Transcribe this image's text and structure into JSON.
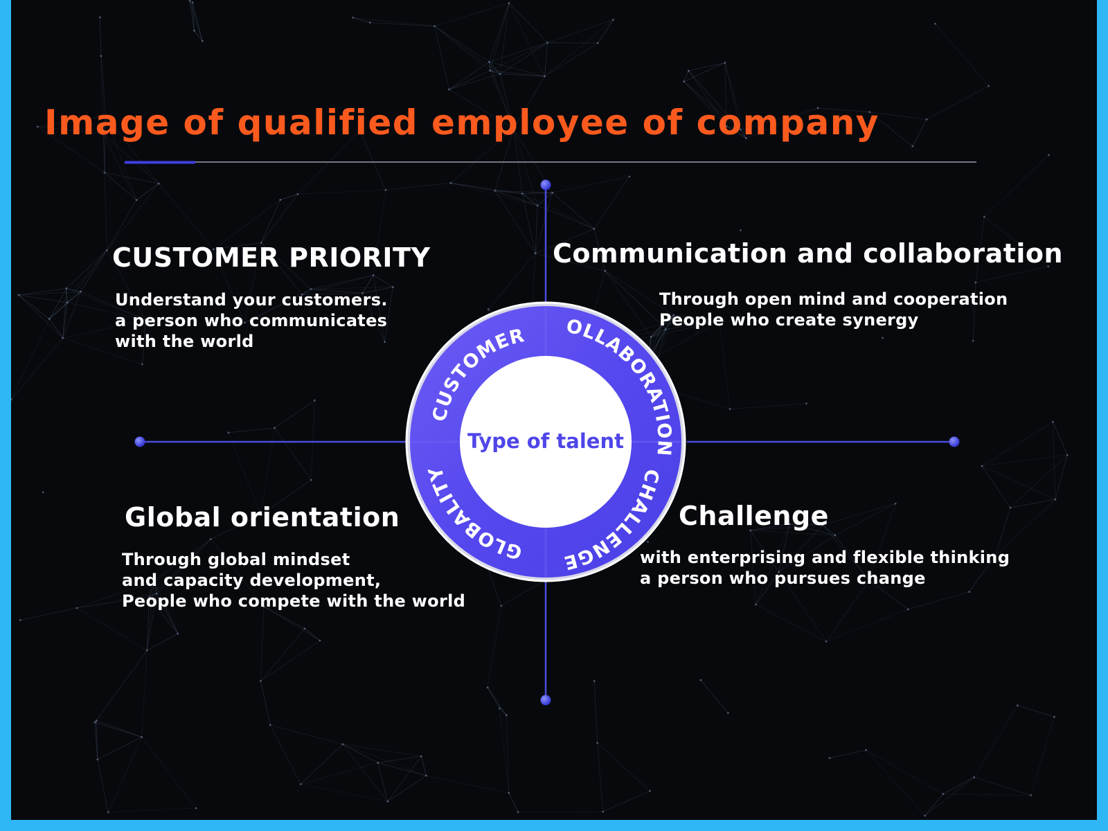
{
  "title": "Image of qualified employee of company",
  "center": {
    "label": "Type of talent",
    "ring_labels": [
      "CUSTOMER",
      "COLLABORATION",
      "CHALLENGE",
      "GLOBALITY"
    ]
  },
  "quadrants": {
    "top_left": {
      "heading": "CUSTOMER PRIORITY",
      "lines": [
        "Understand your customers.",
        "a person who communicates",
        "with the world"
      ]
    },
    "top_right": {
      "heading": "Communication and collaboration",
      "lines": [
        "Through open mind and cooperation",
        "People who create synergy"
      ]
    },
    "bottom_left": {
      "heading": "Global orientation",
      "lines": [
        "Through global mindset",
        "and capacity development,",
        "People who compete with the world"
      ]
    },
    "bottom_right": {
      "heading": "Challenge",
      "lines": [
        "with enterprising and flexible thinking",
        "a person who pursues change"
      ]
    }
  },
  "colors": {
    "frame": "#2fb6f5",
    "background": "#07090d",
    "title": "#fa5a1e",
    "ring": "#5a4ff0",
    "accent_line": "#3d3fe0",
    "text": "#ffffff"
  }
}
